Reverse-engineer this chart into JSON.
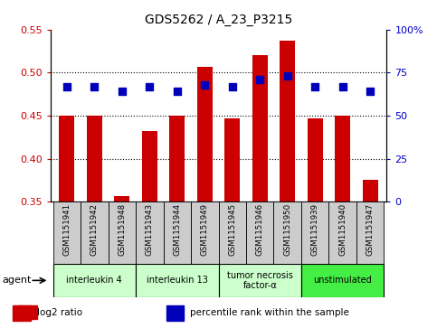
{
  "title": "GDS5262 / A_23_P3215",
  "samples": [
    "GSM1151941",
    "GSM1151942",
    "GSM1151948",
    "GSM1151943",
    "GSM1151944",
    "GSM1151949",
    "GSM1151945",
    "GSM1151946",
    "GSM1151950",
    "GSM1151939",
    "GSM1151940",
    "GSM1151947"
  ],
  "log2_ratio": [
    0.45,
    0.45,
    0.357,
    0.432,
    0.45,
    0.507,
    0.447,
    0.52,
    0.537,
    0.447,
    0.45,
    0.375
  ],
  "percentile_rank_pct": [
    67,
    67,
    64,
    67,
    64,
    68,
    67,
    71,
    73,
    67,
    67,
    64
  ],
  "ylim_left": [
    0.35,
    0.55
  ],
  "ylim_right": [
    0,
    100
  ],
  "yticks_left": [
    0.35,
    0.4,
    0.45,
    0.5,
    0.55
  ],
  "yticks_right": [
    0,
    25,
    50,
    75,
    100
  ],
  "agents": [
    {
      "label": "interleukin 4",
      "col_indices": [
        0,
        1,
        2
      ],
      "color": "#ccffcc"
    },
    {
      "label": "interleukin 13",
      "col_indices": [
        3,
        4,
        5
      ],
      "color": "#ccffcc"
    },
    {
      "label": "tumor necrosis\nfactor-α",
      "col_indices": [
        6,
        7,
        8
      ],
      "color": "#ccffcc"
    },
    {
      "label": "unstimulated",
      "col_indices": [
        9,
        10,
        11
      ],
      "color": "#44ee44"
    }
  ],
  "bar_color": "#cc0000",
  "dot_color": "#0000bb",
  "bar_bottom": 0.35,
  "bar_width": 0.55,
  "dot_size": 30,
  "grid_yticks": [
    0.4,
    0.45,
    0.5
  ],
  "left_label_color": "#cc0000",
  "right_label_color": "#0000cc",
  "agent_label_color": "black",
  "sample_box_color": "#cccccc"
}
